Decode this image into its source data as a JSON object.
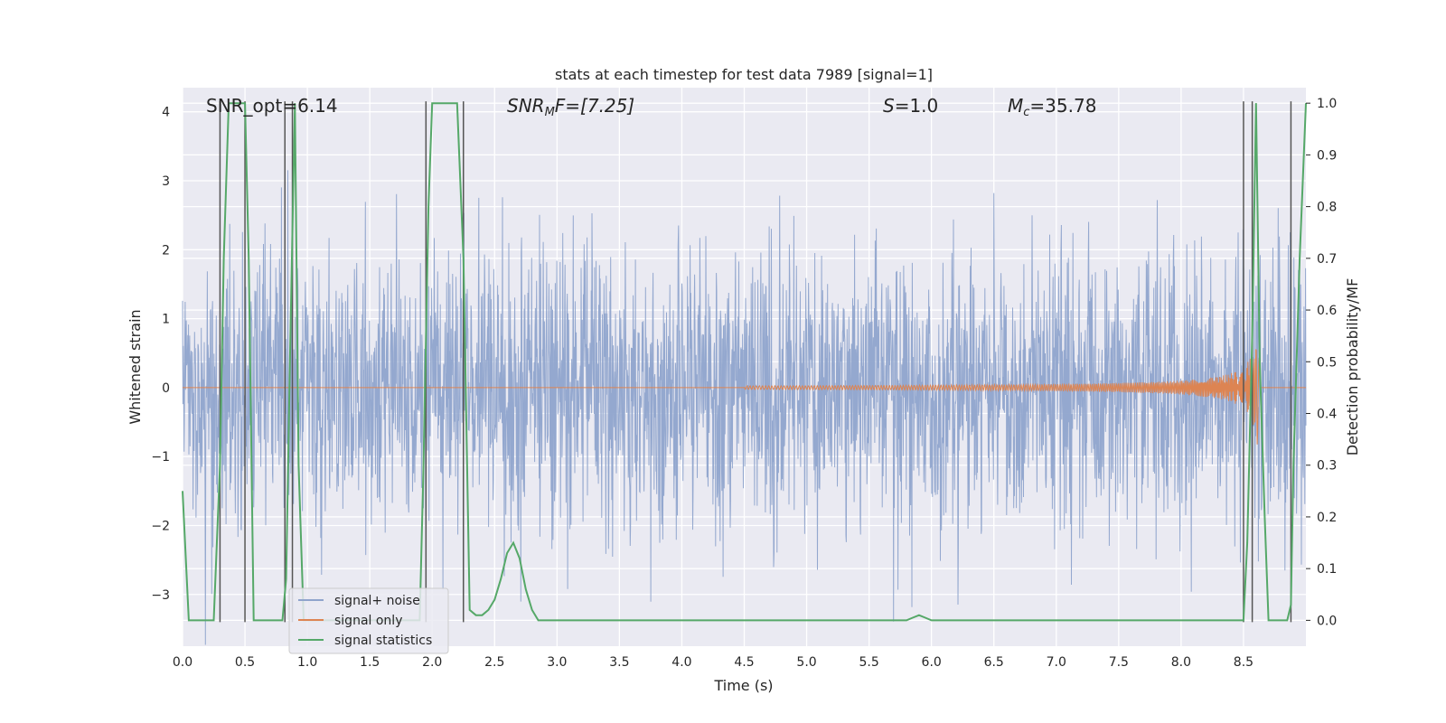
{
  "chart_data": {
    "type": "line",
    "title": "stats at each timestep for test data 7989 [signal=1]",
    "xlabel": "Time (s)",
    "ylabel_left": "Whitened strain",
    "ylabel_right": "Detection probability/MF",
    "xlim": [
      0.0,
      9.0
    ],
    "ylim_left": [
      -3.75,
      4.35
    ],
    "ylim_right": [
      -0.05,
      1.03
    ],
    "x_ticks": [
      "0.0",
      "0.5",
      "1.0",
      "1.5",
      "2.0",
      "2.5",
      "3.0",
      "3.5",
      "4.0",
      "4.5",
      "5.0",
      "5.5",
      "6.0",
      "6.5",
      "7.0",
      "7.5",
      "8.0",
      "8.5"
    ],
    "y_left_ticks": [
      "−3",
      "−2",
      "−1",
      "0",
      "1",
      "2",
      "3",
      "4"
    ],
    "y_right_ticks": [
      "0.0",
      "0.1",
      "0.2",
      "0.3",
      "0.4",
      "0.5",
      "0.6",
      "0.7",
      "0.8",
      "0.9",
      "1.0"
    ],
    "grid": true,
    "legend_position": "lower-left",
    "annotations": {
      "snr_opt": "SNR_opt=6.14",
      "snr_mf_symbol": "SNR",
      "snr_mf_sub": "M",
      "snr_mf_rest": "F=[7.25]",
      "s_symbol": "S",
      "s_rest": "=1.0",
      "mc_symbol": "M",
      "mc_sub": "c",
      "mc_rest": "=35.78"
    },
    "series": [
      {
        "name": "signal+ noise",
        "color": "#8fa4cc",
        "axis": "left",
        "noise_std": 1.0,
        "max_excursion": 3.75
      },
      {
        "name": "signal only",
        "color": "#dd8452",
        "axis": "left",
        "chirp": {
          "start": 4.5,
          "end": 8.63,
          "peak_amplitude": 1.4
        }
      },
      {
        "name": "signal statistics",
        "color": "#55a868",
        "axis": "right",
        "x": [
          0.0,
          0.05,
          0.1,
          0.15,
          0.2,
          0.25,
          0.3,
          0.33,
          0.37,
          0.4,
          0.45,
          0.5,
          0.53,
          0.57,
          0.6,
          0.65,
          0.7,
          0.75,
          0.8,
          0.83,
          0.86,
          0.9,
          0.93,
          0.97,
          1.0,
          1.5,
          1.9,
          1.93,
          1.97,
          2.0,
          2.05,
          2.1,
          2.15,
          2.2,
          2.25,
          2.3,
          2.35,
          2.4,
          2.45,
          2.5,
          2.55,
          2.6,
          2.65,
          2.7,
          2.75,
          2.8,
          2.85,
          2.9,
          2.95,
          3.0,
          3.5,
          4.0,
          4.5,
          5.0,
          5.5,
          5.8,
          5.85,
          5.9,
          5.95,
          6.0,
          6.5,
          7.0,
          7.5,
          8.0,
          8.5,
          8.53,
          8.57,
          8.6,
          8.63,
          8.67,
          8.7,
          8.75,
          8.8,
          8.85,
          8.88,
          8.9,
          8.95,
          9.0
        ],
        "y": [
          0.25,
          0.0,
          0.0,
          0.0,
          0.0,
          0.0,
          0.3,
          0.7,
          1.0,
          1.0,
          1.0,
          1.0,
          0.7,
          0.0,
          0.0,
          0.0,
          0.0,
          0.0,
          0.0,
          0.08,
          0.5,
          1.0,
          0.3,
          0.0,
          0.0,
          0.0,
          0.0,
          0.3,
          0.8,
          1.0,
          1.0,
          1.0,
          1.0,
          1.0,
          0.7,
          0.02,
          0.01,
          0.01,
          0.02,
          0.04,
          0.08,
          0.13,
          0.15,
          0.12,
          0.06,
          0.02,
          0.0,
          0.0,
          0.0,
          0.0,
          0.0,
          0.0,
          0.0,
          0.0,
          0.0,
          0.0,
          0.005,
          0.01,
          0.005,
          0.0,
          0.0,
          0.0,
          0.0,
          0.0,
          0.0,
          0.15,
          0.55,
          1.0,
          0.5,
          0.2,
          0.0,
          0.0,
          0.0,
          0.0,
          0.03,
          0.3,
          0.7,
          1.0
        ]
      }
    ],
    "vertical_lines": [
      0.3,
      0.5,
      0.82,
      0.88,
      1.95,
      2.25,
      8.5,
      8.57,
      8.88
    ],
    "vertical_line_color": "#555555"
  }
}
